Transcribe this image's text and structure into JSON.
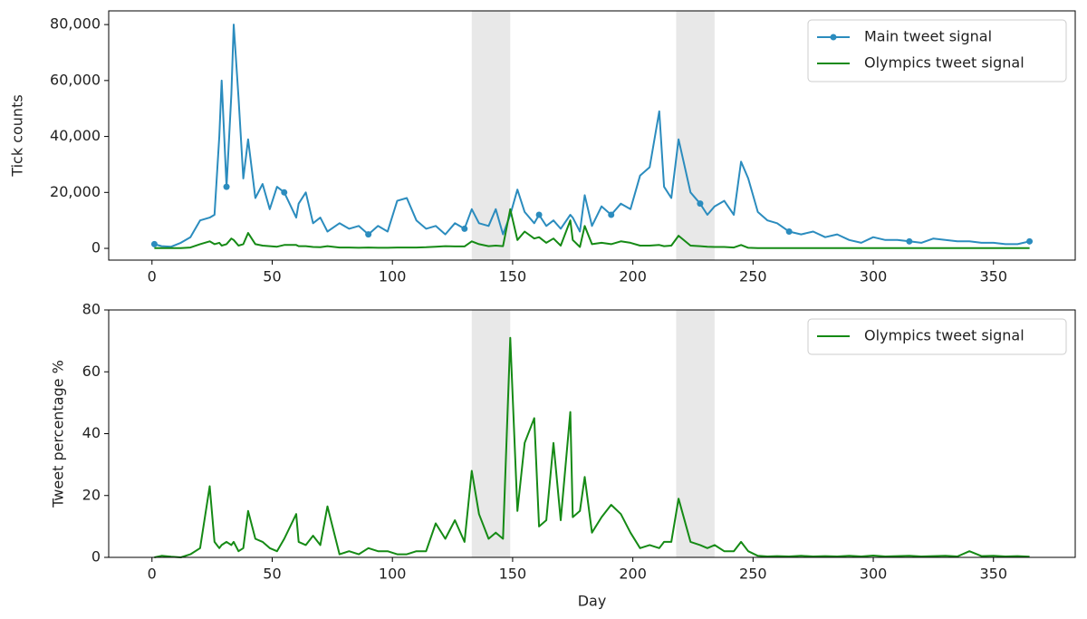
{
  "chart_data": [
    {
      "type": "line",
      "ylabel": "Tick counts",
      "x": [
        1,
        4,
        8,
        12,
        16,
        20,
        24,
        26,
        28,
        29,
        31,
        33,
        34,
        36,
        38,
        40,
        43,
        46,
        49,
        52,
        55,
        60,
        61,
        64,
        67,
        70,
        73,
        78,
        82,
        86,
        90,
        94,
        98,
        102,
        106,
        110,
        114,
        118,
        122,
        126,
        130,
        133,
        136,
        140,
        143,
        146,
        149,
        152,
        155,
        159,
        161,
        164,
        167,
        170,
        174,
        175,
        178,
        180,
        183,
        187,
        191,
        195,
        199,
        203,
        207,
        211,
        213,
        216,
        219,
        224,
        228,
        231,
        234,
        238,
        242,
        245,
        248,
        252,
        256,
        260,
        265,
        270,
        275,
        280,
        285,
        290,
        295,
        300,
        305,
        310,
        315,
        320,
        325,
        330,
        335,
        340,
        345,
        350,
        355,
        360,
        365
      ],
      "series": [
        {
          "name": "Main tweet signal",
          "color": "#2b8cbe",
          "marker": "o",
          "markevery": 10,
          "values": [
            1500,
            800,
            600,
            2000,
            4000,
            10000,
            11000,
            12000,
            40000,
            60000,
            22000,
            55000,
            80000,
            54000,
            25000,
            39000,
            18000,
            23000,
            14000,
            22000,
            20000,
            11000,
            16000,
            20000,
            9000,
            11000,
            6000,
            9000,
            7000,
            8000,
            5000,
            8000,
            6000,
            17000,
            18000,
            10000,
            7000,
            8000,
            5000,
            9000,
            7000,
            14000,
            9000,
            8000,
            14000,
            5000,
            12000,
            21000,
            13000,
            9000,
            12000,
            8000,
            10000,
            7000,
            12000,
            11000,
            6000,
            19000,
            8000,
            15000,
            12000,
            16000,
            14000,
            26000,
            29000,
            49000,
            22000,
            18000,
            39000,
            20000,
            16000,
            12000,
            15000,
            17000,
            12000,
            31000,
            25000,
            13000,
            10000,
            9000,
            6000,
            5000,
            6000,
            4000,
            5000,
            3000,
            2000,
            4000,
            3000,
            3000,
            2500,
            2000,
            3500,
            3000,
            2500,
            2500,
            2000,
            2000,
            1500,
            1500,
            2500
          ]
        },
        {
          "name": "Olympics tweet signal",
          "color": "#158a15",
          "values": [
            100,
            100,
            100,
            100,
            300,
            1500,
            2500,
            1500,
            2000,
            1000,
            1500,
            3500,
            3000,
            1000,
            1500,
            5500,
            1500,
            1000,
            800,
            600,
            1200,
            1200,
            800,
            800,
            500,
            400,
            800,
            300,
            300,
            200,
            300,
            200,
            200,
            300,
            300,
            300,
            400,
            600,
            800,
            700,
            700,
            2500,
            1500,
            800,
            1000,
            800,
            14000,
            3000,
            6000,
            3500,
            4000,
            2000,
            3500,
            1000,
            10000,
            3000,
            500,
            8000,
            1500,
            2000,
            1500,
            2500,
            2000,
            1000,
            1000,
            1200,
            800,
            1000,
            4500,
            1000,
            800,
            600,
            500,
            500,
            300,
            1200,
            200,
            100,
            100,
            100,
            100,
            100,
            100,
            100,
            100,
            100,
            100,
            100,
            100,
            100,
            100,
            100,
            100,
            100,
            100,
            100,
            100,
            100,
            100,
            100,
            100
          ]
        }
      ],
      "xlim": [
        -18,
        384
      ],
      "ylim": [
        -4200,
        84900
      ],
      "xticks": [
        0,
        50,
        100,
        150,
        200,
        250,
        300,
        350
      ],
      "yticks": [
        0,
        {
          "value": 20000,
          "label": "20,000"
        },
        {
          "value": 40000,
          "label": "40,000"
        },
        {
          "value": 60000,
          "label": "60,000"
        },
        {
          "value": 80000,
          "label": "80,000"
        }
      ],
      "shaded_spans": [
        [
          133,
          149
        ],
        [
          218,
          234
        ]
      ],
      "shade_color": "#e8e8e8",
      "legend": "upper right"
    },
    {
      "type": "line",
      "xlabel": "Day",
      "ylabel": "Tweet percentage %",
      "x": [
        1,
        4,
        8,
        12,
        16,
        20,
        24,
        26,
        28,
        29,
        31,
        33,
        34,
        36,
        38,
        40,
        43,
        46,
        49,
        52,
        55,
        60,
        61,
        64,
        67,
        70,
        73,
        78,
        82,
        86,
        90,
        94,
        98,
        102,
        106,
        110,
        114,
        118,
        122,
        126,
        130,
        133,
        136,
        140,
        143,
        146,
        149,
        152,
        155,
        159,
        161,
        164,
        167,
        170,
        174,
        175,
        178,
        180,
        183,
        187,
        191,
        195,
        199,
        203,
        207,
        211,
        213,
        216,
        219,
        224,
        228,
        231,
        234,
        238,
        242,
        245,
        248,
        252,
        256,
        260,
        265,
        270,
        275,
        280,
        285,
        290,
        295,
        300,
        305,
        310,
        315,
        320,
        325,
        330,
        335,
        340,
        345,
        350,
        355,
        360,
        365
      ],
      "series": [
        {
          "name": "Olympics tweet signal",
          "color": "#158a15",
          "values": [
            0,
            0.5,
            0.2,
            0,
            1,
            3,
            23,
            5,
            3,
            4,
            5,
            4,
            5,
            2,
            3,
            15,
            6,
            5,
            3,
            2,
            6,
            14,
            5,
            4,
            7,
            4,
            16.5,
            1,
            2,
            1,
            3,
            2,
            2,
            1,
            1,
            2,
            2,
            11,
            6,
            12,
            5,
            28,
            14,
            6,
            8,
            6,
            71,
            15,
            37,
            45,
            10,
            12,
            37,
            12,
            47,
            13,
            15,
            26,
            8,
            13,
            17,
            14,
            8,
            3,
            4,
            3,
            5,
            5,
            19,
            5,
            4,
            3,
            4,
            2,
            2,
            5,
            2,
            0.5,
            0.3,
            0.4,
            0.3,
            0.5,
            0.3,
            0.4,
            0.3,
            0.5,
            0.3,
            0.6,
            0.3,
            0.4,
            0.5,
            0.3,
            0.4,
            0.5,
            0.3,
            2,
            0.4,
            0.5,
            0.3,
            0.4,
            0.2
          ]
        }
      ],
      "xlim": [
        -18,
        384
      ],
      "ylim": [
        0,
        80
      ],
      "xticks": [
        0,
        50,
        100,
        150,
        200,
        250,
        300,
        350
      ],
      "yticks": [
        0,
        20,
        40,
        60,
        80
      ],
      "shaded_spans": [
        [
          133,
          149
        ],
        [
          218,
          234
        ]
      ],
      "shade_color": "#e8e8e8",
      "legend": "upper right"
    }
  ]
}
